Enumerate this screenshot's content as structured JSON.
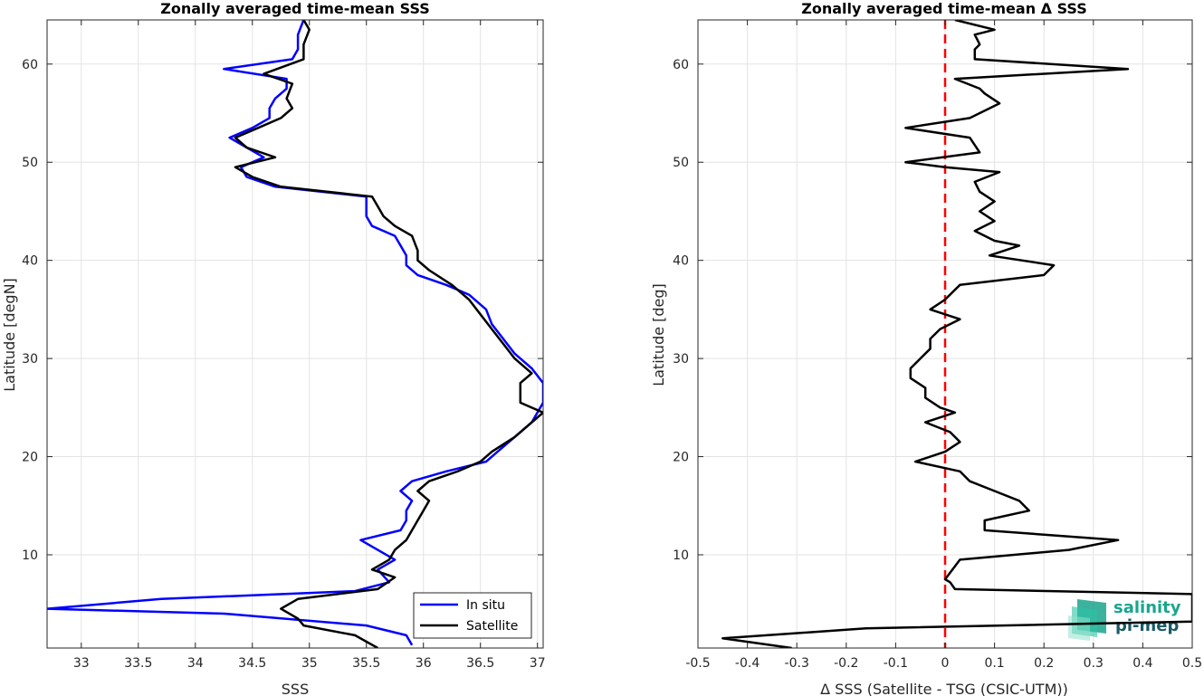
{
  "chart_data": [
    {
      "type": "line",
      "title": "Zonally averaged time-mean SSS",
      "xlabel": "SSS",
      "ylabel": "Latitude [degN]",
      "xlim": [
        32.7,
        37.05
      ],
      "ylim": [
        0.5,
        64.5
      ],
      "xticks": [
        "33",
        "33.5",
        "34",
        "34.5",
        "35",
        "35.5",
        "36",
        "36.5",
        "37"
      ],
      "yticks": [
        "10",
        "20",
        "30",
        "40",
        "50",
        "60"
      ],
      "grid": true,
      "legend": "bottom-right",
      "series": [
        {
          "name": "In situ",
          "color": "#0000ff",
          "points": [
            [
              35.9,
              0.8
            ],
            [
              35.85,
              1.8
            ],
            [
              35.5,
              2.8
            ],
            [
              34.25,
              4.0
            ],
            [
              32.7,
              4.5
            ],
            [
              33.7,
              5.5
            ],
            [
              35.4,
              6.3
            ],
            [
              35.7,
              7.2
            ],
            [
              35.6,
              8.5
            ],
            [
              35.75,
              9.5
            ],
            [
              35.6,
              10.5
            ],
            [
              35.45,
              11.5
            ],
            [
              35.8,
              12.5
            ],
            [
              35.85,
              13.5
            ],
            [
              35.85,
              14.5
            ],
            [
              35.9,
              15.5
            ],
            [
              35.8,
              16.5
            ],
            [
              35.9,
              17.5
            ],
            [
              36.2,
              18.5
            ],
            [
              36.55,
              19.5
            ],
            [
              36.65,
              20.5
            ],
            [
              36.8,
              22.0
            ],
            [
              36.95,
              23.5
            ],
            [
              37.05,
              25.5
            ],
            [
              37.05,
              27.5
            ],
            [
              36.95,
              29.0
            ],
            [
              36.8,
              30.5
            ],
            [
              36.7,
              32.0
            ],
            [
              36.6,
              33.5
            ],
            [
              36.55,
              35.0
            ],
            [
              36.4,
              36.5
            ],
            [
              36.2,
              37.5
            ],
            [
              35.95,
              38.5
            ],
            [
              35.85,
              39.5
            ],
            [
              35.85,
              40.5
            ],
            [
              35.8,
              41.5
            ],
            [
              35.75,
              42.5
            ],
            [
              35.55,
              43.5
            ],
            [
              35.5,
              44.5
            ],
            [
              35.5,
              46.5
            ],
            [
              34.7,
              47.5
            ],
            [
              34.45,
              48.5
            ],
            [
              34.4,
              49.5
            ],
            [
              34.6,
              50.5
            ],
            [
              34.45,
              51.5
            ],
            [
              34.3,
              52.5
            ],
            [
              34.5,
              53.5
            ],
            [
              34.65,
              54.5
            ],
            [
              34.65,
              55.5
            ],
            [
              34.7,
              56.5
            ],
            [
              34.8,
              57.5
            ],
            [
              34.8,
              58.5
            ],
            [
              34.25,
              59.5
            ],
            [
              34.85,
              60.5
            ],
            [
              34.9,
              61.5
            ],
            [
              34.9,
              63.0
            ],
            [
              34.95,
              64.5
            ]
          ]
        },
        {
          "name": "Satellite",
          "color": "#000000",
          "points": [
            [
              35.6,
              0.5
            ],
            [
              35.4,
              1.8
            ],
            [
              34.95,
              2.8
            ],
            [
              34.9,
              3.5
            ],
            [
              34.75,
              4.5
            ],
            [
              34.9,
              5.5
            ],
            [
              35.6,
              6.5
            ],
            [
              35.75,
              7.7
            ],
            [
              35.55,
              8.5
            ],
            [
              35.7,
              9.5
            ],
            [
              35.75,
              10.5
            ],
            [
              35.85,
              11.5
            ],
            [
              35.9,
              12.5
            ],
            [
              35.95,
              13.5
            ],
            [
              36.0,
              14.5
            ],
            [
              36.05,
              15.5
            ],
            [
              35.95,
              16.5
            ],
            [
              36.05,
              17.5
            ],
            [
              36.3,
              18.5
            ],
            [
              36.5,
              19.5
            ],
            [
              36.6,
              20.5
            ],
            [
              36.8,
              22.0
            ],
            [
              37.05,
              24.5
            ],
            [
              36.85,
              25.5
            ],
            [
              36.85,
              27.5
            ],
            [
              36.95,
              28.5
            ],
            [
              36.8,
              30.0
            ],
            [
              36.7,
              31.5
            ],
            [
              36.6,
              33.0
            ],
            [
              36.5,
              34.5
            ],
            [
              36.4,
              36.0
            ],
            [
              36.25,
              37.5
            ],
            [
              36.05,
              39.0
            ],
            [
              35.95,
              40.0
            ],
            [
              35.95,
              41.0
            ],
            [
              35.9,
              42.5
            ],
            [
              35.75,
              43.5
            ],
            [
              35.65,
              44.5
            ],
            [
              35.6,
              45.5
            ],
            [
              35.55,
              46.5
            ],
            [
              34.75,
              47.5
            ],
            [
              34.5,
              48.5
            ],
            [
              34.35,
              49.5
            ],
            [
              34.7,
              50.5
            ],
            [
              34.45,
              51.5
            ],
            [
              34.35,
              52.5
            ],
            [
              34.55,
              53.5
            ],
            [
              34.75,
              54.5
            ],
            [
              34.85,
              55.5
            ],
            [
              34.8,
              56.5
            ],
            [
              34.85,
              58.0
            ],
            [
              34.6,
              59.0
            ],
            [
              34.95,
              60.5
            ],
            [
              34.95,
              62.0
            ],
            [
              35.0,
              63.5
            ],
            [
              34.95,
              64.5
            ]
          ]
        }
      ]
    },
    {
      "type": "line",
      "title": "Zonally averaged time-mean Δ SSS",
      "xlabel": "Δ SSS (Satellite - TSG (CSIC-UTM))",
      "ylabel": "Latitude [deg]",
      "xlim": [
        -0.5,
        0.5
      ],
      "ylim": [
        0.5,
        64.5
      ],
      "xticks": [
        "-0.5",
        "-0.4",
        "-0.3",
        "-0.2",
        "-0.1",
        "0",
        "0.1",
        "0.2",
        "0.3",
        "0.4",
        "0.5"
      ],
      "yticks": [
        "10",
        "20",
        "30",
        "40",
        "50",
        "60"
      ],
      "grid": true,
      "reference_line": {
        "x": 0,
        "color": "#ff0000",
        "style": "dashed"
      },
      "series": [
        {
          "color": "#000000",
          "points": [
            [
              -0.31,
              0.5
            ],
            [
              -0.45,
              1.5
            ],
            [
              -0.16,
              2.5
            ],
            [
              0.5,
              3.2
            ],
            [
              0.5,
              6.0
            ],
            [
              0.02,
              6.5
            ],
            [
              0.01,
              7.2
            ],
            [
              0.0,
              7.5
            ],
            [
              0.03,
              9.5
            ],
            [
              0.25,
              10.5
            ],
            [
              0.35,
              11.5
            ],
            [
              0.08,
              12.5
            ],
            [
              0.08,
              13.5
            ],
            [
              0.17,
              14.5
            ],
            [
              0.15,
              15.5
            ],
            [
              0.1,
              16.5
            ],
            [
              0.05,
              17.5
            ],
            [
              0.03,
              18.5
            ],
            [
              -0.06,
              19.5
            ],
            [
              0.0,
              20.5
            ],
            [
              0.03,
              21.5
            ],
            [
              0.01,
              22.5
            ],
            [
              -0.04,
              23.5
            ],
            [
              0.02,
              24.5
            ],
            [
              -0.01,
              25.0
            ],
            [
              -0.04,
              26.0
            ],
            [
              -0.04,
              27.0
            ],
            [
              -0.07,
              28.0
            ],
            [
              -0.07,
              29.0
            ],
            [
              -0.05,
              30.0
            ],
            [
              -0.03,
              31.0
            ],
            [
              -0.03,
              32.0
            ],
            [
              -0.01,
              33.0
            ],
            [
              0.03,
              34.0
            ],
            [
              -0.03,
              35.0
            ],
            [
              0.0,
              36.0
            ],
            [
              0.02,
              37.0
            ],
            [
              0.03,
              37.5
            ],
            [
              0.2,
              38.5
            ],
            [
              0.22,
              39.5
            ],
            [
              0.09,
              40.5
            ],
            [
              0.15,
              41.5
            ],
            [
              0.1,
              42.0
            ],
            [
              0.06,
              43.0
            ],
            [
              0.1,
              44.0
            ],
            [
              0.07,
              45.0
            ],
            [
              0.1,
              46.0
            ],
            [
              0.07,
              47.0
            ],
            [
              0.06,
              48.0
            ],
            [
              0.11,
              49.0
            ],
            [
              0.0,
              49.5
            ],
            [
              -0.08,
              50.0
            ],
            [
              0.07,
              51.0
            ],
            [
              0.05,
              52.5
            ],
            [
              -0.08,
              53.5
            ],
            [
              0.05,
              54.5
            ],
            [
              0.11,
              56.0
            ],
            [
              0.08,
              57.0
            ],
            [
              0.07,
              57.5
            ],
            [
              0.02,
              58.5
            ],
            [
              0.37,
              59.5
            ],
            [
              0.06,
              60.5
            ],
            [
              0.06,
              61.5
            ],
            [
              0.07,
              62.0
            ],
            [
              0.06,
              63.0
            ],
            [
              0.1,
              63.5
            ],
            [
              0.02,
              64.5
            ]
          ]
        }
      ]
    }
  ],
  "legend": {
    "items": [
      {
        "label": "In situ",
        "color": "#0000ff"
      },
      {
        "label": "Satellite",
        "color": "#000000"
      }
    ]
  },
  "logo": {
    "line1": "salinity",
    "line2": "pi-mep"
  }
}
